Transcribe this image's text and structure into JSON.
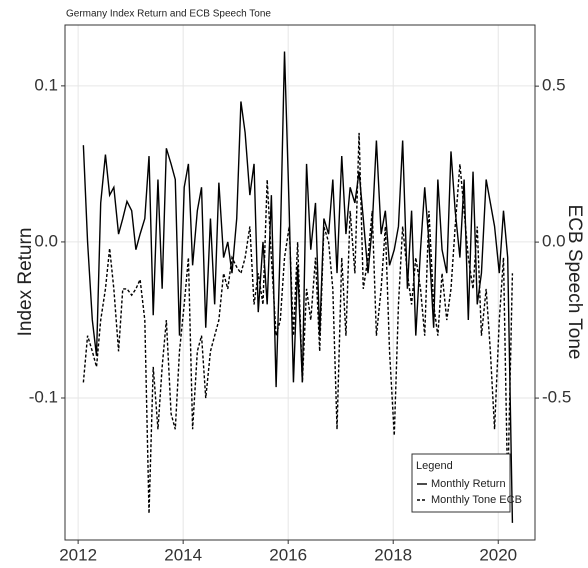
{
  "chart_data": {
    "type": "line",
    "title": "Germany Index Return and ECB Speech Tone",
    "y_label": "Index Return",
    "y2_label": "ECB Speech Tone",
    "legend_title": "Legend",
    "legend_position": "bottom-right",
    "grid": true,
    "xlim": [
      2011.75,
      2020.7
    ],
    "xticks": [
      2012,
      2014,
      2016,
      2018,
      2020
    ],
    "ylim": [
      -0.191,
      0.139
    ],
    "yticks": [
      0.1,
      {
        "value": 0,
        "label": "0.0"
      },
      -0.1
    ],
    "y2lim": [
      -0.955,
      0.696
    ],
    "y2ticks": [
      0.5,
      {
        "value": 0,
        "label": "0.0"
      },
      -0.5
    ],
    "x": [
      2012.1,
      2012.18,
      2012.27,
      2012.35,
      2012.43,
      2012.52,
      2012.6,
      2012.68,
      2012.77,
      2012.85,
      2012.93,
      2013.02,
      2013.1,
      2013.18,
      2013.27,
      2013.35,
      2013.43,
      2013.52,
      2013.6,
      2013.68,
      2013.77,
      2013.85,
      2013.93,
      2014.02,
      2014.1,
      2014.18,
      2014.27,
      2014.35,
      2014.43,
      2014.52,
      2014.6,
      2014.68,
      2014.77,
      2014.85,
      2014.93,
      2015.02,
      2015.1,
      2015.18,
      2015.27,
      2015.35,
      2015.43,
      2015.52,
      2015.6,
      2015.68,
      2015.77,
      2015.85,
      2015.93,
      2016.02,
      2016.1,
      2016.18,
      2016.27,
      2016.35,
      2016.43,
      2016.52,
      2016.6,
      2016.68,
      2016.77,
      2016.85,
      2016.93,
      2017.02,
      2017.1,
      2017.18,
      2017.27,
      2017.35,
      2017.43,
      2017.52,
      2017.6,
      2017.68,
      2017.77,
      2017.85,
      2017.93,
      2018.02,
      2018.1,
      2018.18,
      2018.27,
      2018.35,
      2018.43,
      2018.52,
      2018.6,
      2018.68,
      2018.77,
      2018.85,
      2018.93,
      2019.02,
      2019.1,
      2019.18,
      2019.27,
      2019.35,
      2019.43,
      2019.52,
      2019.6,
      2019.68,
      2019.77,
      2019.85,
      2019.93,
      2020.02,
      2020.1,
      2020.18,
      2020.27
    ],
    "series": [
      {
        "name": "Monthly Return",
        "color": "#000000",
        "dash": "solid",
        "values": [
          0.062,
          0.0,
          -0.05,
          -0.073,
          0.025,
          0.056,
          0.03,
          0.035,
          0.005,
          0.015,
          0.026,
          0.02,
          -0.005,
          0.005,
          0.015,
          0.055,
          -0.047,
          0.04,
          -0.03,
          0.06,
          0.05,
          0.04,
          -0.06,
          0.035,
          0.05,
          -0.015,
          0.02,
          0.035,
          -0.055,
          0.015,
          -0.04,
          0.038,
          -0.01,
          0.0,
          -0.02,
          0.015,
          0.09,
          0.07,
          0.03,
          0.05,
          -0.045,
          0.0,
          -0.04,
          0.03,
          -0.093,
          0.0,
          0.122,
          0.02,
          -0.09,
          -0.015,
          -0.09,
          0.05,
          -0.005,
          0.025,
          -0.06,
          0.015,
          0.005,
          0.04,
          -0.02,
          0.055,
          0.005,
          0.035,
          0.025,
          0.045,
          0.015,
          -0.02,
          0.01,
          0.065,
          0.005,
          0.02,
          -0.015,
          -0.005,
          0.01,
          0.065,
          -0.03,
          0.02,
          -0.06,
          -0.005,
          0.035,
          0.0,
          -0.055,
          0.04,
          -0.005,
          -0.02,
          0.058,
          0.02,
          -0.01,
          0.04,
          -0.05,
          0.045,
          -0.04,
          -0.02,
          0.04,
          0.025,
          0.01,
          -0.02,
          0.02,
          -0.01,
          -0.18
        ]
      },
      {
        "name": "Monthly Tone ECB",
        "color": "#000000",
        "dash": "dashed",
        "axis": "y2",
        "values": [
          -0.45,
          -0.3,
          -0.35,
          -0.4,
          -0.25,
          -0.15,
          -0.02,
          -0.15,
          -0.35,
          -0.15,
          -0.15,
          -0.17,
          -0.15,
          -0.12,
          -0.25,
          -0.87,
          -0.4,
          -0.6,
          -0.4,
          -0.25,
          -0.55,
          -0.6,
          -0.35,
          -0.2,
          -0.05,
          -0.6,
          -0.35,
          -0.3,
          -0.5,
          -0.35,
          -0.3,
          -0.25,
          -0.1,
          -0.15,
          -0.05,
          -0.08,
          -0.1,
          -0.05,
          0.05,
          -0.2,
          -0.1,
          -0.2,
          0.2,
          -0.05,
          -0.3,
          -0.25,
          -0.05,
          0.05,
          -0.3,
          0.0,
          -0.45,
          -0.15,
          -0.25,
          -0.05,
          -0.35,
          0.05,
          0.0,
          -0.15,
          -0.6,
          -0.05,
          -0.3,
          0.1,
          -0.1,
          0.35,
          -0.15,
          -0.05,
          0.1,
          -0.3,
          -0.15,
          0.05,
          -0.35,
          -0.62,
          -0.2,
          0.05,
          -0.1,
          -0.2,
          -0.05,
          -0.15,
          -0.3,
          0.1,
          -0.2,
          -0.3,
          -0.1,
          -0.25,
          -0.15,
          0.05,
          0.25,
          0.1,
          -0.05,
          -0.15,
          0.05,
          -0.3,
          -0.15,
          -0.35,
          -0.6,
          -0.25,
          -0.05,
          -0.8,
          -0.1
        ]
      }
    ]
  }
}
